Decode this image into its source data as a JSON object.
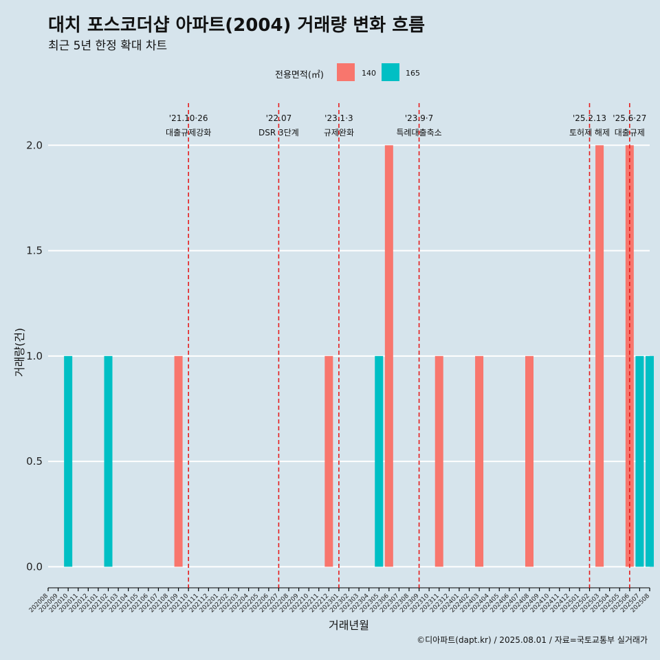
{
  "title": "대치 포스코더샵 아파트(2004) 거래량 변화 흐름",
  "subtitle": "최근 5년 한정 확대 차트",
  "caption": "©디아파트(dapt.kr) / 2025.08.01 / 자료=국토교통부 실거래가",
  "legend": {
    "title": "전용면적(㎡)",
    "items": [
      {
        "label": "140",
        "color": "#f8766d"
      },
      {
        "label": "165",
        "color": "#00bfc4"
      }
    ]
  },
  "chart_data": {
    "type": "bar",
    "xlabel": "거래년월",
    "ylabel": "거래량(건)",
    "ylim": [
      -0.1,
      2.2
    ],
    "yticks": [
      "0.0",
      "0.5",
      "1.0",
      "1.5",
      "2.0"
    ],
    "grid": true,
    "legend_position": "top",
    "categories": [
      "202008",
      "202009",
      "202010",
      "202011",
      "202012",
      "202101",
      "202102",
      "202103",
      "202104",
      "202105",
      "202106",
      "202107",
      "202108",
      "202109",
      "202110",
      "202111",
      "202112",
      "202201",
      "202202",
      "202203",
      "202204",
      "202205",
      "202206",
      "202207",
      "202208",
      "202209",
      "202210",
      "202211",
      "202212",
      "202301",
      "202302",
      "202303",
      "202304",
      "202305",
      "202306",
      "202307",
      "202308",
      "202309",
      "202310",
      "202311",
      "202312",
      "202401",
      "202402",
      "202403",
      "202404",
      "202405",
      "202406",
      "202407",
      "202408",
      "202409",
      "202410",
      "202411",
      "202412",
      "202501",
      "202502",
      "202503",
      "202504",
      "202505",
      "202506",
      "202507",
      "202508"
    ],
    "series": [
      {
        "name": "140",
        "color": "#f8766d",
        "points": [
          [
            "202109",
            1
          ],
          [
            "202212",
            1
          ],
          [
            "202306",
            2
          ],
          [
            "202311",
            1
          ],
          [
            "202403",
            1
          ],
          [
            "202408",
            1
          ],
          [
            "202503",
            2
          ],
          [
            "202506",
            2
          ]
        ]
      },
      {
        "name": "165",
        "color": "#00bfc4",
        "points": [
          [
            "202010",
            1
          ],
          [
            "202102",
            1
          ],
          [
            "202305",
            1
          ],
          [
            "202507",
            1
          ],
          [
            "202508",
            1
          ]
        ]
      }
    ],
    "annotations": [
      {
        "at": "202110",
        "date": "'21.10·26",
        "text": "대출규제강화"
      },
      {
        "at": "202207",
        "date": "'22.07",
        "text": "DSR 3단계"
      },
      {
        "at": "202301",
        "date": "'23.1·3",
        "text": "규제완화"
      },
      {
        "at": "202309",
        "date": "'23.9·7",
        "text": "특례대출축소"
      },
      {
        "at": "202502",
        "date": "'25.2.13",
        "text": "토허제 해제"
      },
      {
        "at": "202506",
        "date": "'25.6·27",
        "text": "대출규제"
      }
    ]
  }
}
